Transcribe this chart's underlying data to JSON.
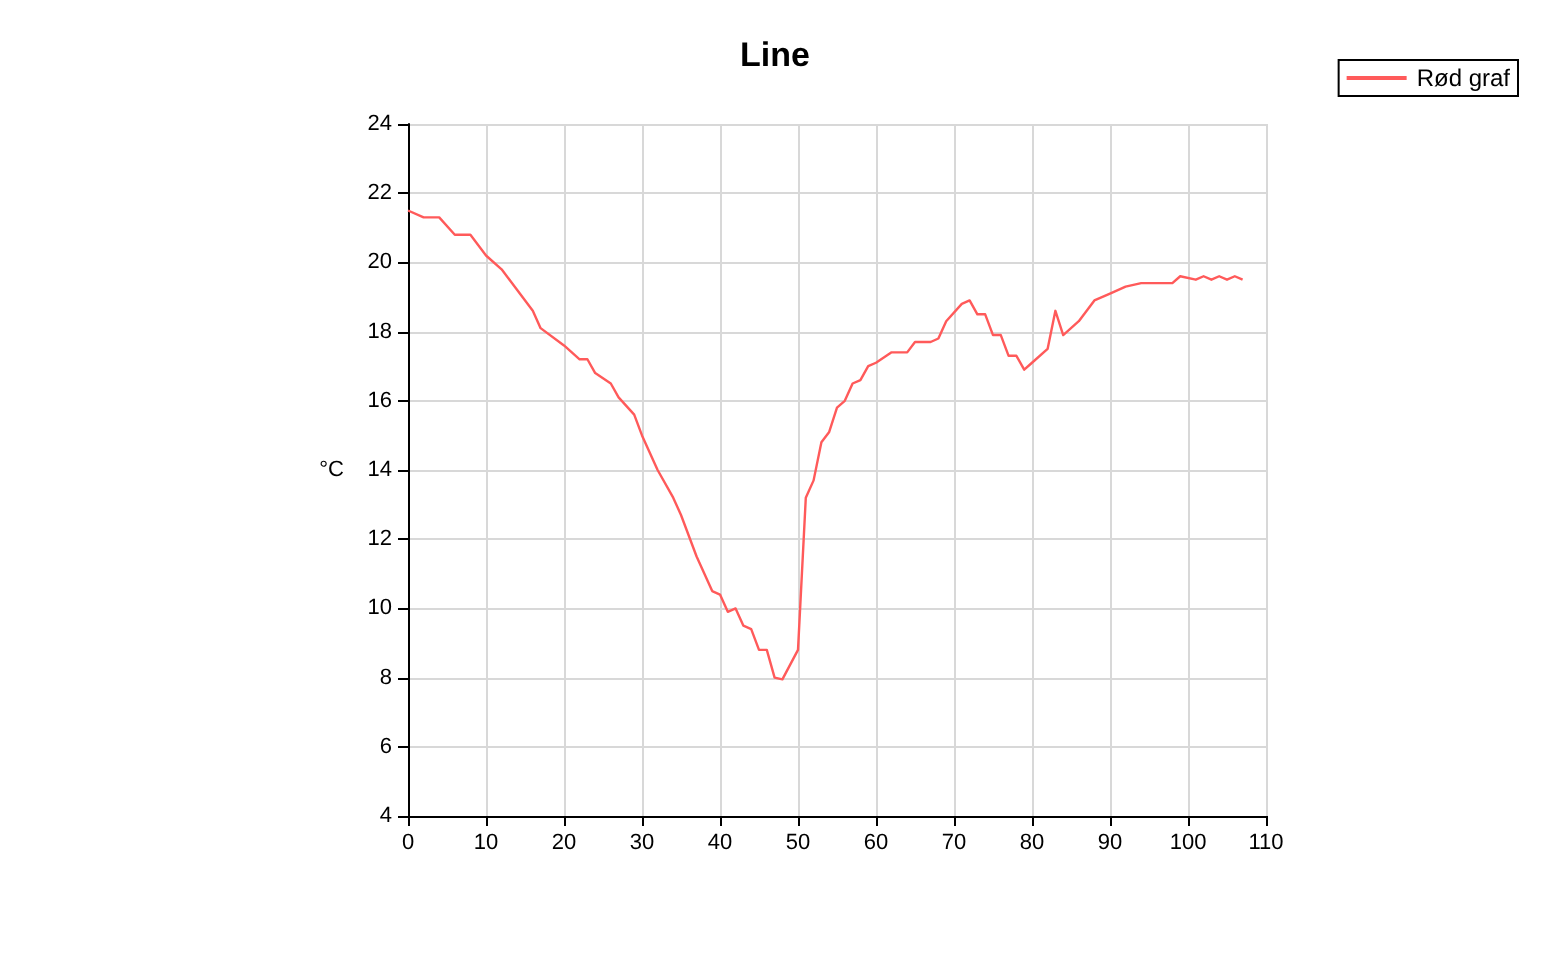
{
  "chart_data": {
    "type": "line",
    "title": "Line",
    "ylabel": "°C",
    "x": [
      0,
      2,
      4,
      6,
      8,
      10,
      12,
      14,
      16,
      17,
      20,
      22,
      23,
      24,
      26,
      27,
      29,
      30,
      32,
      34,
      35,
      37,
      38,
      39,
      40,
      41,
      42,
      43,
      44,
      45,
      46,
      47,
      48,
      50,
      51,
      52,
      53,
      54,
      55,
      56,
      57,
      58,
      59,
      60,
      62,
      64,
      65,
      67,
      68,
      69,
      71,
      72,
      73,
      74,
      75,
      76,
      77,
      78,
      79,
      80,
      82,
      83,
      84,
      86,
      88,
      90,
      92,
      94,
      96,
      98,
      99,
      101,
      102,
      103,
      104,
      105,
      106,
      107
    ],
    "series": [
      {
        "name": "Rød graf",
        "color": "#ff5a5a",
        "values": [
          21.5,
          21.3,
          21.3,
          20.8,
          20.8,
          20.2,
          19.8,
          19.2,
          18.6,
          18.1,
          17.6,
          17.2,
          17.2,
          16.8,
          16.5,
          16.1,
          15.6,
          15.0,
          14.0,
          13.2,
          12.7,
          11.5,
          11.0,
          10.5,
          10.4,
          9.9,
          10.0,
          9.5,
          9.4,
          8.8,
          8.8,
          8.0,
          7.95,
          8.8,
          13.2,
          13.7,
          14.8,
          15.1,
          15.8,
          16.0,
          16.5,
          16.6,
          17.0,
          17.1,
          17.4,
          17.4,
          17.7,
          17.7,
          17.8,
          18.3,
          18.8,
          18.9,
          18.5,
          18.5,
          17.9,
          17.9,
          17.3,
          17.3,
          16.9,
          17.1,
          17.5,
          18.6,
          17.9,
          18.3,
          18.9,
          19.1,
          19.3,
          19.4,
          19.4,
          19.4,
          19.6,
          19.5,
          19.6,
          19.5,
          19.6,
          19.5,
          19.6,
          19.5
        ]
      }
    ],
    "xlim": [
      0,
      110
    ],
    "xticks": [
      0,
      10,
      20,
      30,
      40,
      50,
      60,
      70,
      80,
      90,
      100,
      110
    ],
    "ylim": [
      4,
      24
    ],
    "yticks": [
      4,
      6,
      8,
      10,
      12,
      14,
      16,
      18,
      20,
      22,
      24
    ],
    "grid": true,
    "legend": "top right",
    "marker": "none",
    "line_style": "solid"
  }
}
